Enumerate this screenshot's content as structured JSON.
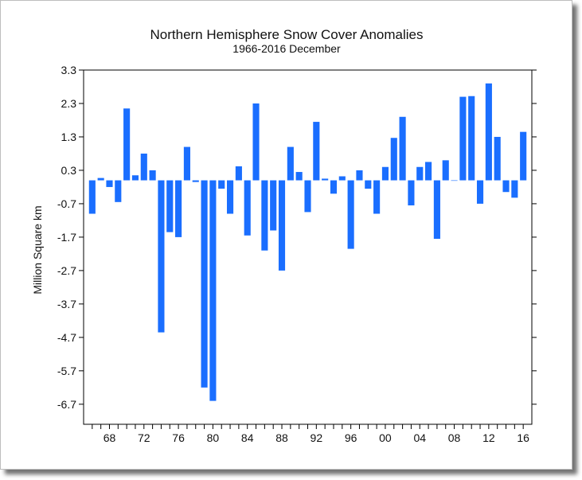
{
  "chart_data": {
    "type": "bar",
    "title": "Northern Hemisphere Snow Cover Anomalies",
    "subtitle": "1966-2016 December",
    "xlabel": "",
    "ylabel": "Million Square km",
    "ylim": [
      -7.3,
      3.3
    ],
    "yticks": [
      "3.3",
      "2.3",
      "1.3",
      "0.3",
      "-0.7",
      "-1.7",
      "-2.7",
      "-3.7",
      "-4.7",
      "-5.7",
      "-6.7"
    ],
    "xticks": [
      "68",
      "72",
      "76",
      "80",
      "84",
      "88",
      "92",
      "96",
      "00",
      "04",
      "08",
      "12",
      "16"
    ],
    "xticks_years": [
      1968,
      1972,
      1976,
      1980,
      1984,
      1988,
      1992,
      1996,
      2000,
      2004,
      2008,
      2012,
      2016
    ],
    "bar_color": "#1a6eff",
    "x": [
      1966,
      1967,
      1968,
      1969,
      1970,
      1971,
      1972,
      1973,
      1974,
      1975,
      1976,
      1977,
      1978,
      1979,
      1980,
      1981,
      1982,
      1983,
      1984,
      1985,
      1986,
      1987,
      1988,
      1989,
      1990,
      1991,
      1992,
      1993,
      1994,
      1995,
      1996,
      1997,
      1998,
      1999,
      2000,
      2001,
      2002,
      2003,
      2004,
      2005,
      2006,
      2007,
      2008,
      2009,
      2010,
      2011,
      2012,
      2013,
      2014,
      2015,
      2016
    ],
    "values": [
      -1.0,
      0.07,
      -0.2,
      -0.65,
      2.15,
      0.15,
      0.8,
      0.3,
      -4.55,
      -1.55,
      -1.7,
      1.0,
      -0.05,
      -6.2,
      -6.6,
      -0.25,
      -1.0,
      0.42,
      -1.65,
      2.3,
      -2.1,
      -1.5,
      -2.7,
      1.0,
      0.25,
      -0.95,
      1.75,
      0.05,
      -0.4,
      0.12,
      -2.05,
      0.3,
      -0.25,
      -1.0,
      0.4,
      1.27,
      1.9,
      -0.75,
      0.4,
      0.55,
      -1.75,
      0.6,
      0.0,
      2.5,
      2.52,
      -0.7,
      2.9,
      1.3,
      -0.35,
      -0.52,
      1.45
    ]
  }
}
